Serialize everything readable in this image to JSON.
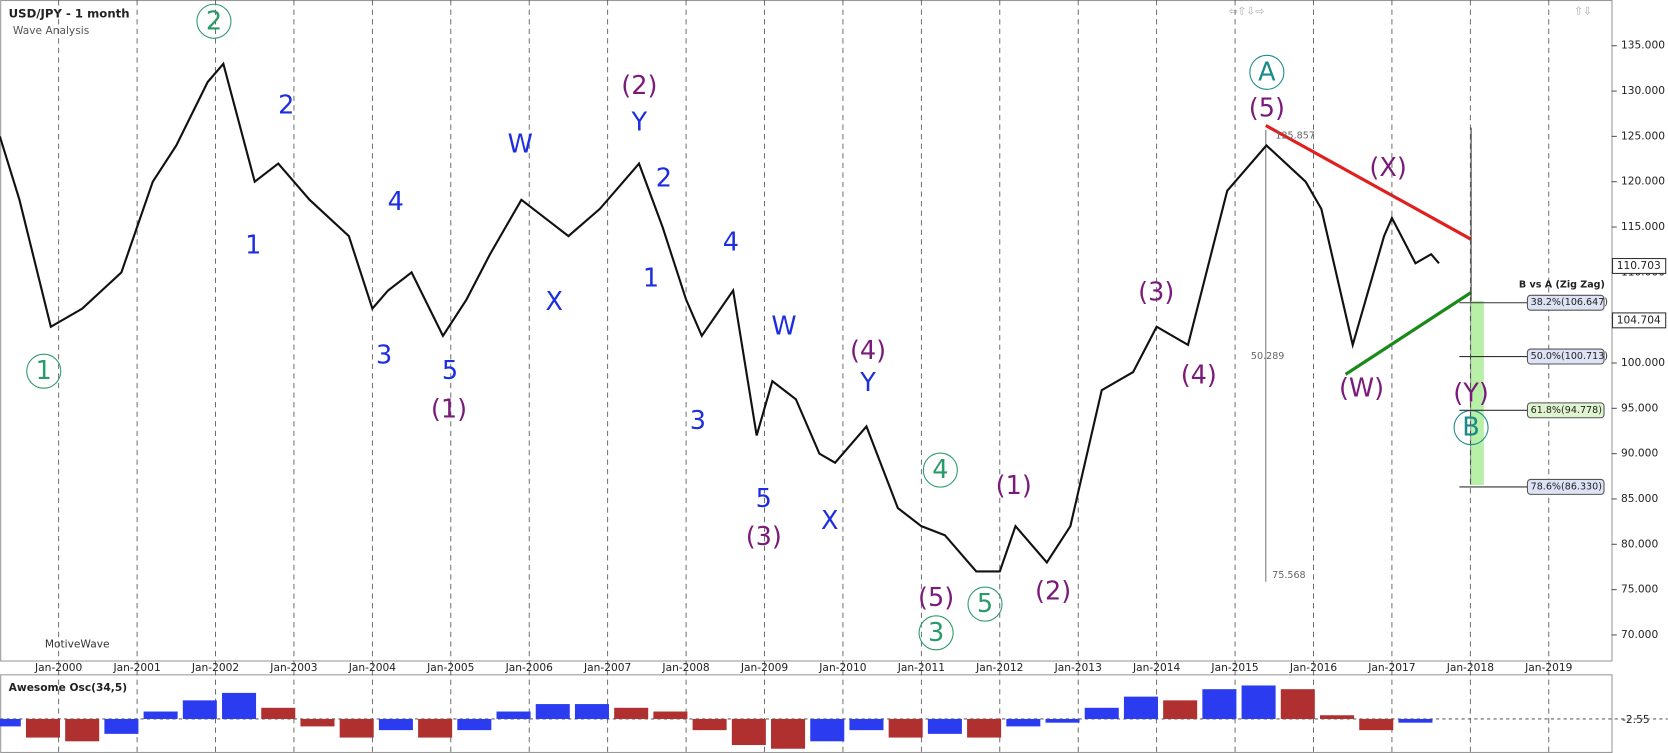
{
  "header": {
    "title": "USD/JPY - 1 month",
    "subtitle": "Wave Analysis",
    "brand": "MotiveWave"
  },
  "chart_data": {
    "type": "line",
    "x": [
      1999.25,
      1999.5,
      1999.9,
      2000.3,
      2000.8,
      2001.2,
      2001.5,
      2001.9,
      2002.1,
      2002.5,
      2002.8,
      2003.2,
      2003.7,
      2004.0,
      2004.2,
      2004.5,
      2004.9,
      2005.2,
      2005.5,
      2005.9,
      2006.2,
      2006.5,
      2006.9,
      2007.4,
      2007.7,
      2008.0,
      2008.2,
      2008.6,
      2008.9,
      2009.1,
      2009.4,
      2009.7,
      2009.9,
      2010.3,
      2010.7,
      2011.0,
      2011.3,
      2011.7,
      2012.0,
      2012.2,
      2012.6,
      2012.9,
      2013.3,
      2013.7,
      2014.0,
      2014.4,
      2014.9,
      2015.4,
      2015.9,
      2016.1,
      2016.5,
      2016.9,
      2017.0,
      2017.3,
      2017.5,
      2017.6
    ],
    "series": [
      {
        "name": "USD/JPY",
        "color": "#111111",
        "values": [
          125,
          118,
          104,
          106,
          110,
          120,
          124,
          131,
          133,
          120,
          122,
          118,
          114,
          106,
          108,
          110,
          103,
          107,
          112,
          118,
          116,
          114,
          117,
          122,
          115,
          107,
          103,
          108,
          92,
          98,
          96,
          90,
          89,
          93,
          84,
          82,
          81,
          77,
          77,
          82,
          78,
          82,
          97,
          99,
          104,
          102,
          119,
          124,
          120,
          117,
          102,
          114,
          116,
          111,
          112,
          111
        ]
      }
    ],
    "xlim": [
      1999.25,
      2019.8
    ],
    "xticks": [
      {
        "value": 2000,
        "label": "Jan-2000"
      },
      {
        "value": 2001,
        "label": "Jan-2001"
      },
      {
        "value": 2002,
        "label": "Jan-2002"
      },
      {
        "value": 2003,
        "label": "Jan-2003"
      },
      {
        "value": 2004,
        "label": "Jan-2004"
      },
      {
        "value": 2005,
        "label": "Jan-2005"
      },
      {
        "value": 2006,
        "label": "Jan-2006"
      },
      {
        "value": 2007,
        "label": "Jan-2007"
      },
      {
        "value": 2008,
        "label": "Jan-2008"
      },
      {
        "value": 2009,
        "label": "Jan-2009"
      },
      {
        "value": 2010,
        "label": "Jan-2010"
      },
      {
        "value": 2011,
        "label": "Jan-2011"
      },
      {
        "value": 2012,
        "label": "Jan-2012"
      },
      {
        "value": 2013,
        "label": "Jan-2013"
      },
      {
        "value": 2014,
        "label": "Jan-2014"
      },
      {
        "value": 2015,
        "label": "Jan-2015"
      },
      {
        "value": 2016,
        "label": "Jan-2016"
      },
      {
        "value": 2017,
        "label": "Jan-2017"
      },
      {
        "value": 2018,
        "label": "Jan-2018"
      },
      {
        "value": 2019,
        "label": "Jan-2019"
      }
    ],
    "ylim": [
      67,
      140
    ],
    "yticks": [
      {
        "value": 70,
        "label": "70.000"
      },
      {
        "value": 75,
        "label": "75.000"
      },
      {
        "value": 80,
        "label": "80.000"
      },
      {
        "value": 85,
        "label": "85.000"
      },
      {
        "value": 90,
        "label": "90.000"
      },
      {
        "value": 95,
        "label": "95.000"
      },
      {
        "value": 100,
        "label": "100.000"
      },
      {
        "value": 105,
        "label": "105.000"
      },
      {
        "value": 110,
        "label": "110.000"
      },
      {
        "value": 115,
        "label": "115.000"
      },
      {
        "value": 120,
        "label": "120.000"
      },
      {
        "value": 125,
        "label": "125.000"
      },
      {
        "value": 130,
        "label": "130.000"
      },
      {
        "value": 135,
        "label": "135.000"
      }
    ],
    "price_labels": [
      {
        "value": 110.703,
        "label": "110.703"
      },
      {
        "value": 104.704,
        "label": "104.704"
      }
    ],
    "annotations": [
      "125.857",
      "50.289",
      "75.568"
    ],
    "wave_labels": [
      "1",
      "2",
      "2",
      "1",
      "4",
      "3",
      "5",
      "(1)",
      "W",
      "X",
      "(2)",
      "Y",
      "2",
      "1",
      "4",
      "3",
      "W",
      "5",
      "(3)",
      "X",
      "(4)",
      "Y",
      "4",
      "(5)",
      "3",
      "5",
      "(1)",
      "(2)",
      "(3)",
      "(4)",
      "A",
      "(5)",
      "(X)",
      "(W)",
      "(Y)",
      "B"
    ],
    "fib": {
      "title": "B vs A (Zig Zag)",
      "levels": [
        {
          "value": 106.647,
          "label": "38.2%(106.647)"
        },
        {
          "value": 100.713,
          "label": "50.0%(100.713)"
        },
        {
          "value": 94.778,
          "label": "61.8%(94.778)"
        },
        {
          "value": 86.33,
          "label": "78.6%(86.330)"
        }
      ]
    },
    "oscillator": {
      "title": "Awesome Osc(34,5)",
      "level_label": "-2.55",
      "ylim": [
        -10,
        10
      ],
      "x": [
        1999.3,
        1999.8,
        2000.3,
        2000.8,
        2001.3,
        2001.8,
        2002.3,
        2002.8,
        2003.3,
        2003.8,
        2004.3,
        2004.8,
        2005.3,
        2005.8,
        2006.3,
        2006.8,
        2007.3,
        2007.8,
        2008.3,
        2008.8,
        2009.3,
        2009.8,
        2010.3,
        2010.8,
        2011.3,
        2011.8,
        2012.3,
        2012.8,
        2013.3,
        2013.8,
        2014.3,
        2014.8,
        2015.3,
        2015.8,
        2016.3,
        2016.8,
        2017.3
      ],
      "values": [
        -2,
        -5,
        -6,
        -4,
        2,
        5,
        7,
        3,
        -2,
        -5,
        -3,
        -5,
        -3,
        2,
        4,
        4,
        3,
        2,
        -3,
        -7,
        -8,
        -6,
        -3,
        -5,
        -4,
        -5,
        -2,
        -1,
        3,
        6,
        5,
        8,
        9,
        8,
        1,
        -3,
        -1
      ]
    }
  }
}
